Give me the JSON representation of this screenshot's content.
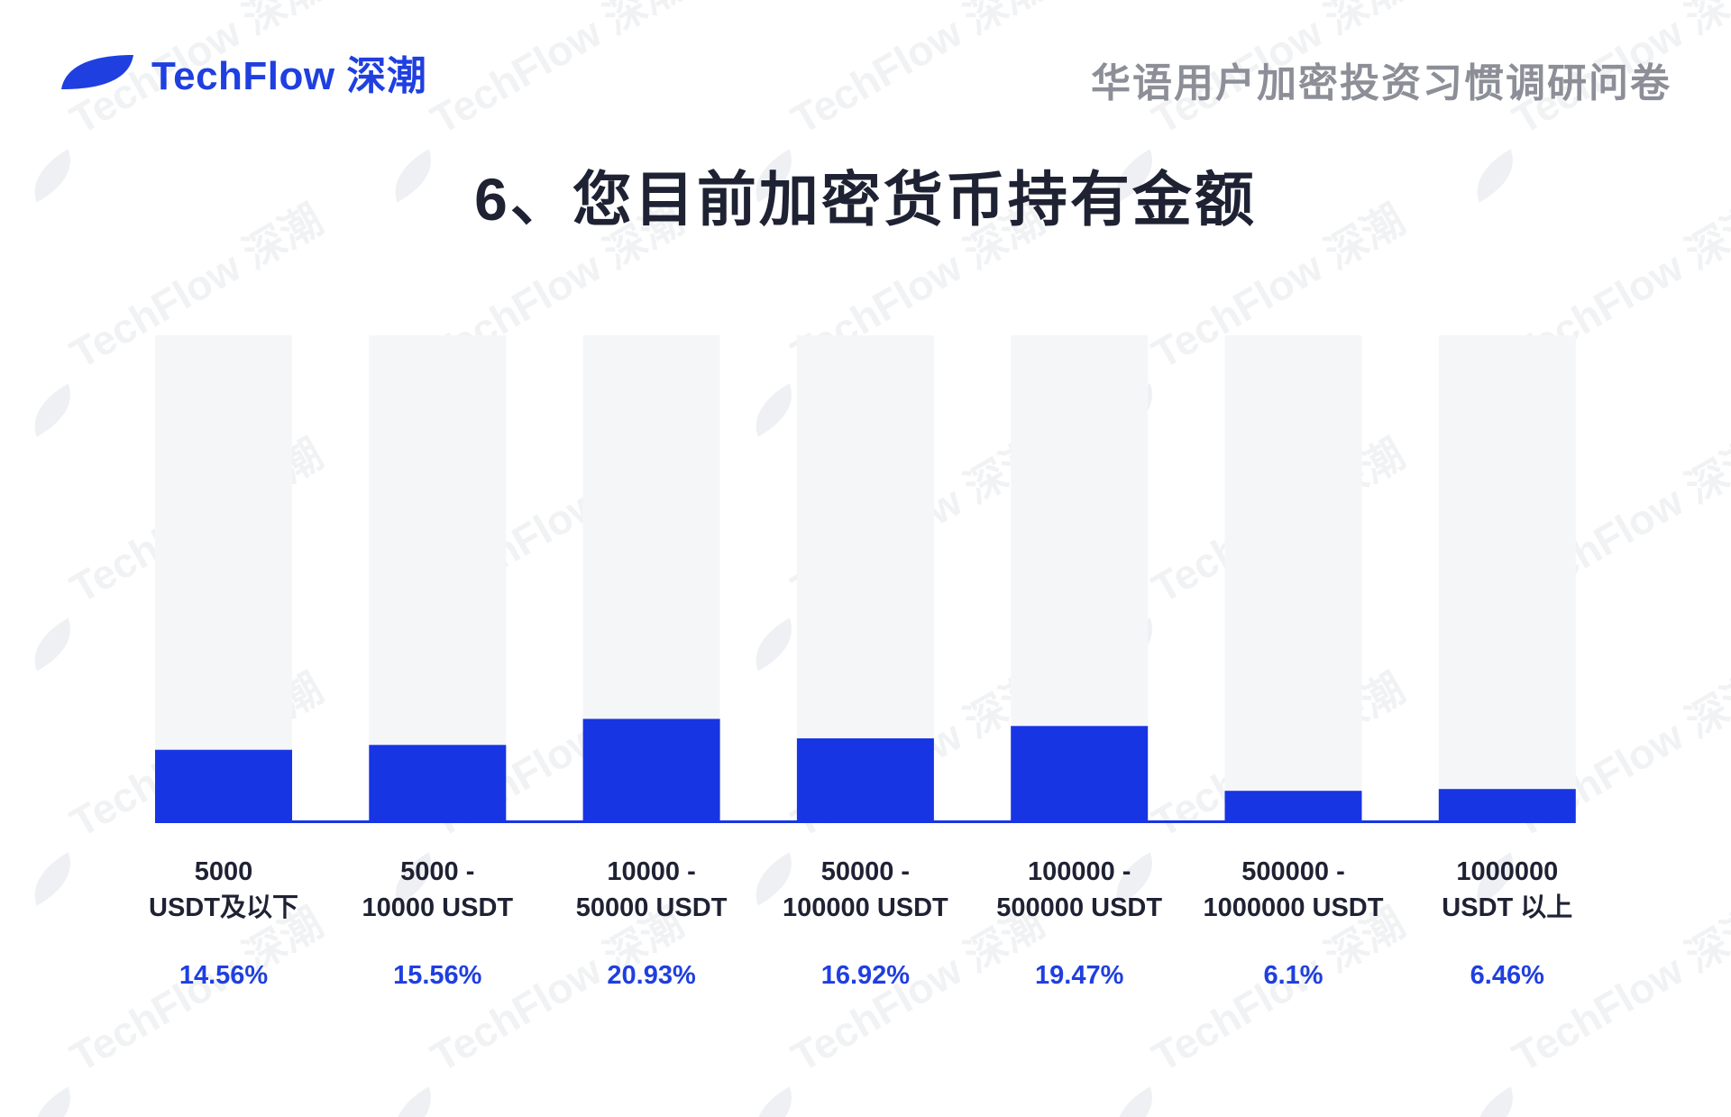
{
  "header": {
    "brand": "TechFlow 深潮",
    "survey_title": "华语用户加密投资习惯调研问卷",
    "brand_color": "#1f3fe0"
  },
  "page_title": "6、您目前加密货币持有金额",
  "watermark_text": "TechFlow 深潮",
  "chart_data": {
    "type": "bar",
    "categories": [
      [
        "5000",
        "USDT及以下"
      ],
      [
        "5000 -",
        "10000 USDT"
      ],
      [
        "10000 -",
        "50000 USDT"
      ],
      [
        "50000 -",
        "100000 USDT"
      ],
      [
        "100000 -",
        "500000 USDT"
      ],
      [
        "500000 -",
        "1000000 USDT"
      ],
      [
        "1000000",
        "USDT 以上"
      ]
    ],
    "values": [
      14.56,
      15.56,
      20.93,
      16.92,
      19.47,
      6.1,
      6.46
    ],
    "value_labels": [
      "14.56%",
      "15.56%",
      "20.93%",
      "16.92%",
      "19.47%",
      "6.1%",
      "6.46%"
    ],
    "ylim": [
      0,
      100
    ],
    "bar_color": "#1735e3",
    "track_color": "#f5f6f8",
    "grid": false,
    "title": "6、您目前加密货币持有金额",
    "xlabel": "",
    "ylabel": ""
  }
}
